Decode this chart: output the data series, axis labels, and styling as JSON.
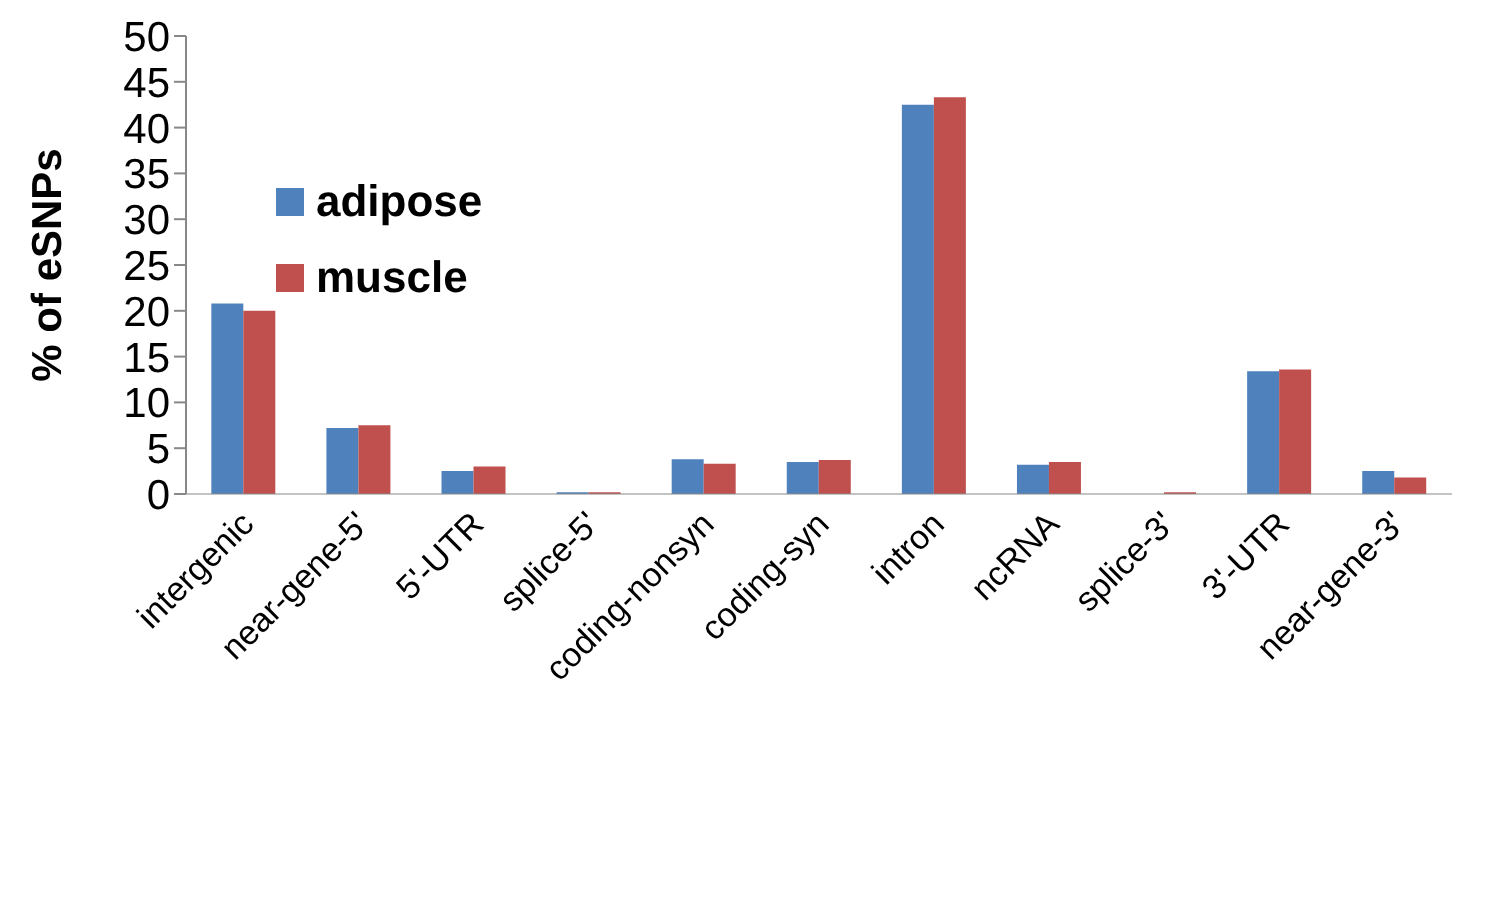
{
  "chart_data": {
    "type": "bar",
    "ylabel": "% of eSNPs",
    "categories": [
      "intergenic",
      "near-gene-5'",
      "5'-UTR",
      "splice-5'",
      "coding-nonsyn",
      "coding-syn",
      "intron",
      "ncRNA",
      "splice-3'",
      "3'-UTR",
      "near-gene-3'"
    ],
    "series": [
      {
        "name": "adipose",
        "color": "#4f81bd",
        "values": [
          20.8,
          7.2,
          2.5,
          0.2,
          3.8,
          3.5,
          42.5,
          3.2,
          0,
          13.4,
          2.5
        ]
      },
      {
        "name": "muscle",
        "color": "#c0504d",
        "values": [
          20.0,
          7.5,
          3.0,
          0.2,
          3.3,
          3.7,
          43.3,
          3.5,
          0.2,
          13.6,
          1.8
        ]
      }
    ],
    "ylim": [
      0,
      50
    ],
    "yticks": [
      0,
      5,
      10,
      15,
      20,
      25,
      30,
      35,
      40,
      45,
      50
    ],
    "grid": false,
    "legend": "top left"
  }
}
